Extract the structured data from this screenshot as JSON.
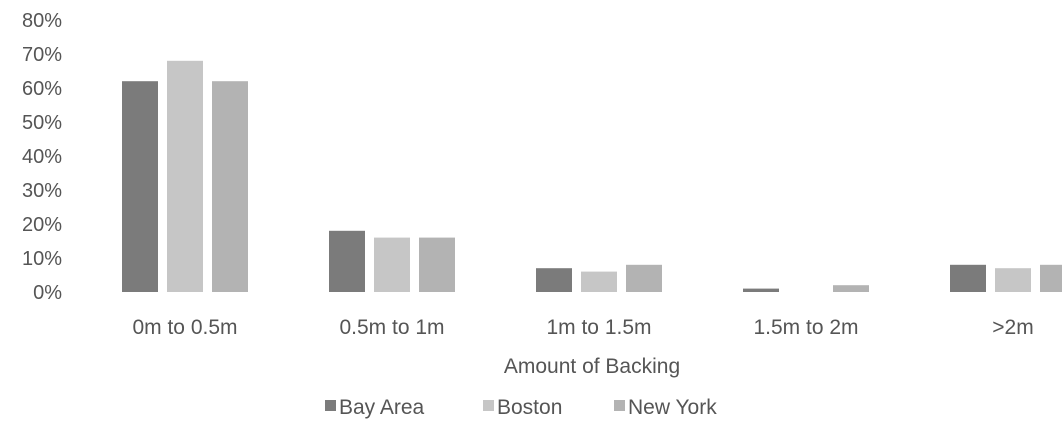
{
  "chart_data": {
    "type": "bar",
    "categories": [
      "0m to 0.5m",
      "0.5m to 1m",
      "1m to 1.5m",
      "1.5m to 2m",
      ">2m"
    ],
    "series": [
      {
        "name": "Bay Area",
        "values": [
          62,
          18,
          7,
          1,
          8
        ],
        "color": "#7b7b7b"
      },
      {
        "name": "Boston",
        "values": [
          68,
          16,
          6,
          0,
          7
        ],
        "color": "#c6c6c6"
      },
      {
        "name": "New York",
        "values": [
          62,
          16,
          8,
          2,
          8
        ],
        "color": "#b3b3b3"
      }
    ],
    "ylim": [
      0,
      80
    ],
    "yticks": [
      "0%",
      "10%",
      "20%",
      "30%",
      "40%",
      "50%",
      "60%",
      "70%",
      "80%"
    ],
    "xlabel": "Amount of Backing",
    "ylabel": "",
    "grid": false,
    "legend_position": "bottom"
  }
}
